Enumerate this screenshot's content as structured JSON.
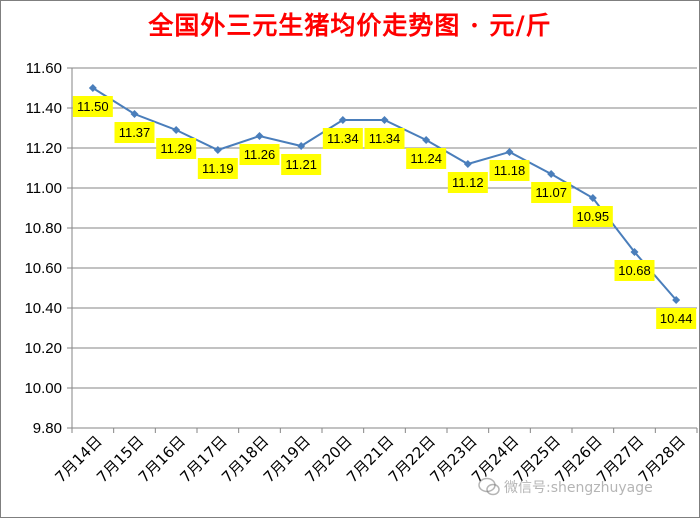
{
  "chart_data": {
    "type": "line",
    "title": "全国外三元生猪均价走势图 · 元/斤",
    "categories": [
      "7月14日",
      "7月15日",
      "7月16日",
      "7月17日",
      "7月18日",
      "7月19日",
      "7月20日",
      "7月21日",
      "7月22日",
      "7月23日",
      "7月24日",
      "7月25日",
      "7月26日",
      "7月27日",
      "7月28日"
    ],
    "values": [
      11.5,
      11.37,
      11.29,
      11.19,
      11.26,
      11.21,
      11.34,
      11.34,
      11.24,
      11.12,
      11.18,
      11.07,
      10.95,
      10.68,
      10.44
    ],
    "data_labels": [
      "11.50",
      "11.37",
      "11.29",
      "11.19",
      "11.26",
      "11.21",
      "11.34",
      "11.34",
      "11.24",
      "11.12",
      "11.18",
      "11.07",
      "10.95",
      "10.68",
      "10.44"
    ],
    "ylim": [
      9.8,
      11.6
    ],
    "yticks": [
      "9.80",
      "10.00",
      "10.20",
      "10.40",
      "10.60",
      "10.80",
      "11.00",
      "11.20",
      "11.40",
      "11.60"
    ],
    "grid": true,
    "line_color": "#4a7ebb",
    "label_bg_color": "#ffff00",
    "title_color": "#ff0000"
  },
  "watermark": {
    "text": "微信号:shengzhuyage"
  }
}
